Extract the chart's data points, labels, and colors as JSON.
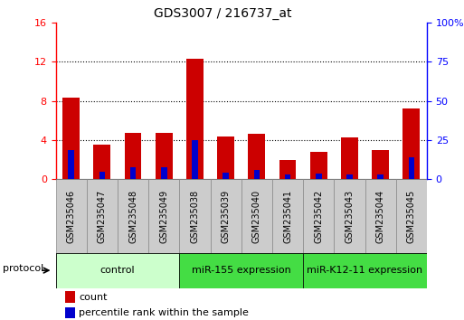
{
  "title": "GDS3007 / 216737_at",
  "samples": [
    "GSM235046",
    "GSM235047",
    "GSM235048",
    "GSM235049",
    "GSM235038",
    "GSM235039",
    "GSM235040",
    "GSM235041",
    "GSM235042",
    "GSM235043",
    "GSM235044",
    "GSM235045"
  ],
  "count_values": [
    8.3,
    3.5,
    4.7,
    4.7,
    12.3,
    4.4,
    4.6,
    2.0,
    2.8,
    4.3,
    3.0,
    7.2
  ],
  "percentile_values": [
    3.0,
    0.8,
    1.2,
    1.2,
    4.0,
    0.7,
    0.9,
    0.5,
    0.6,
    0.5,
    0.5,
    2.2
  ],
  "left_ylim": [
    0,
    16
  ],
  "right_ylim": [
    0,
    100
  ],
  "left_yticks": [
    0,
    4,
    8,
    12,
    16
  ],
  "right_yticks": [
    0,
    25,
    50,
    75,
    100
  ],
  "right_yticklabels": [
    "0",
    "25",
    "50",
    "75",
    "100%"
  ],
  "bar_color": "#cc0000",
  "percentile_color": "#0000cc",
  "group_defs": [
    {
      "label": "control",
      "indices": [
        0,
        1,
        2,
        3
      ],
      "color": "#ccffcc"
    },
    {
      "label": "miR-155 expression",
      "indices": [
        4,
        5,
        6,
        7
      ],
      "color": "#44dd44"
    },
    {
      "label": "miR-K12-11 expression",
      "indices": [
        8,
        9,
        10,
        11
      ],
      "color": "#44dd44"
    }
  ],
  "protocol_label": "protocol",
  "legend_count_label": "count",
  "legend_percentile_label": "percentile rank within the sample",
  "group_label_fontsize": 8,
  "sample_label_fontsize": 7
}
